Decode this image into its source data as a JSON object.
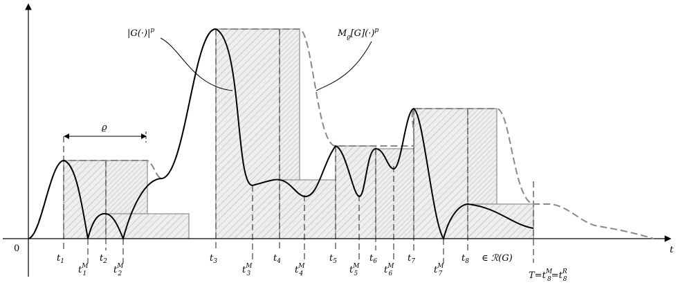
{
  "origin_label": "0",
  "axis_label": "t",
  "curve_labels": {
    "g_base": "|G(·)|",
    "g_sup": "p",
    "m_base": "M",
    "m_sub": "ϱ",
    "m_rest": "[G](·)",
    "m_sup": "p"
  },
  "rho_label": "ϱ",
  "ticks": [
    {
      "base": "t",
      "sub": "1",
      "sup": ""
    },
    {
      "base": "t",
      "sub": "1",
      "sup": "M"
    },
    {
      "base": "t",
      "sub": "2",
      "sup": ""
    },
    {
      "base": "t",
      "sub": "2",
      "sup": "M"
    },
    {
      "base": "t",
      "sub": "3",
      "sup": ""
    },
    {
      "base": "t",
      "sub": "3",
      "sup": "M"
    },
    {
      "base": "t",
      "sub": "4",
      "sup": ""
    },
    {
      "base": "t",
      "sub": "4",
      "sup": "M"
    },
    {
      "base": "t",
      "sub": "5",
      "sup": ""
    },
    {
      "base": "t",
      "sub": "5",
      "sup": "M"
    },
    {
      "base": "t",
      "sub": "6",
      "sup": ""
    },
    {
      "base": "t",
      "sub": "6",
      "sup": "M"
    },
    {
      "base": "t",
      "sub": "7",
      "sup": ""
    },
    {
      "base": "t",
      "sub": "7",
      "sup": "M"
    },
    {
      "base": "t",
      "sub": "8",
      "sup": ""
    }
  ],
  "t8_member": "∈ ℛ(G)",
  "final_label": {
    "T": "T",
    "eq": "=",
    "t": "t",
    "sub": "8",
    "supM": "M",
    "supR": "R"
  },
  "colors": {
    "curve": "#000000",
    "maximal": "#888888",
    "hatch": "#9a9a9a",
    "box_fill": "#eeeeee",
    "box_stroke": "#777777"
  }
}
